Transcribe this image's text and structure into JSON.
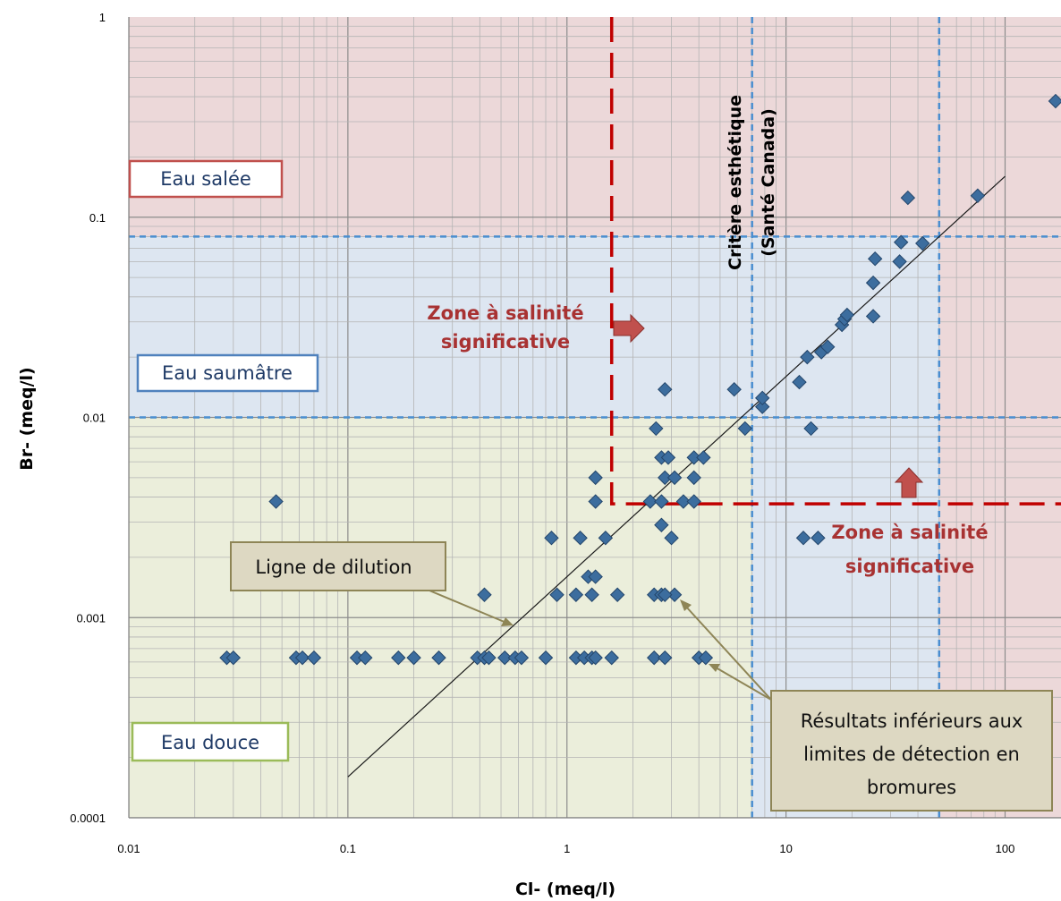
{
  "chart_data": {
    "type": "scatter",
    "xscale": "log",
    "yscale": "log",
    "xlim": [
      0.01,
      180
    ],
    "ylim": [
      0.0001,
      1
    ],
    "xlabel": "Cl- (meq/l)",
    "ylabel": "Br- (meq/l)",
    "xticks": [
      "0.01",
      "0.1",
      "1",
      "10",
      "100"
    ],
    "yticks": [
      "0.0001",
      "0.001",
      "0.01",
      "0.1",
      "1"
    ],
    "grid": true,
    "colors": {
      "fresh": "#ebeedb",
      "brackish": "#dde6f1",
      "salt": "#ecd8d9",
      "point": "#3c6d9e",
      "blue_dash": "#4a8ed0",
      "red_dash": "#c00000"
    },
    "regions": [
      {
        "name": "Eau salée",
        "ymin": 0.08,
        "ymax": 1,
        "color": "salt"
      },
      {
        "name": "Eau saumâtre",
        "ymin": 0.01,
        "ymax": 0.08,
        "color": "brackish"
      },
      {
        "name": "Eau douce",
        "ymin": 0.0001,
        "ymax": 0.01,
        "color": "fresh"
      }
    ],
    "blue_dashed_lines": {
      "horizontal": [
        0.08,
        0.01
      ],
      "vertical": [
        7,
        50
      ]
    },
    "red_dashed_lines": {
      "x": 1.6,
      "y": 0.0037
    },
    "dilution_line": [
      [
        0.1,
        0.00016
      ],
      [
        100,
        0.16
      ]
    ],
    "labels": {
      "salt": "Eau salée",
      "brackish": "Eau saumâtre",
      "fresh": "Eau douce",
      "zone_line1": "Zone à salinité",
      "zone_line2": "significative",
      "criterion_line1": "Critère esthétique",
      "criterion_line2": "(Santé Canada)",
      "dilution": "Ligne de dilution",
      "detection_line1": "Résultats inférieurs aux",
      "detection_line2": "limites de détection en",
      "detection_line3": "bromures"
    },
    "points": [
      [
        0.028,
        0.00063
      ],
      [
        0.03,
        0.00063
      ],
      [
        0.047,
        0.0038
      ],
      [
        0.058,
        0.00063
      ],
      [
        0.062,
        0.00063
      ],
      [
        0.07,
        0.00063
      ],
      [
        0.11,
        0.00063
      ],
      [
        0.12,
        0.00063
      ],
      [
        0.17,
        0.00063
      ],
      [
        0.2,
        0.00063
      ],
      [
        0.26,
        0.00063
      ],
      [
        0.39,
        0.00063
      ],
      [
        0.42,
        0.00063
      ],
      [
        0.44,
        0.00063
      ],
      [
        0.52,
        0.00063
      ],
      [
        0.58,
        0.00063
      ],
      [
        0.62,
        0.00063
      ],
      [
        0.8,
        0.00063
      ],
      [
        1.1,
        0.00063
      ],
      [
        1.2,
        0.00063
      ],
      [
        1.3,
        0.00063
      ],
      [
        1.35,
        0.00063
      ],
      [
        1.6,
        0.00063
      ],
      [
        2.5,
        0.00063
      ],
      [
        2.8,
        0.00063
      ],
      [
        4.0,
        0.00063
      ],
      [
        4.3,
        0.00063
      ],
      [
        0.42,
        0.0013
      ],
      [
        0.9,
        0.0013
      ],
      [
        1.1,
        0.0013
      ],
      [
        1.3,
        0.0013
      ],
      [
        1.7,
        0.0013
      ],
      [
        2.5,
        0.0013
      ],
      [
        2.7,
        0.0013
      ],
      [
        3.1,
        0.0013
      ],
      [
        2.8,
        0.0013
      ],
      [
        1.25,
        0.0016
      ],
      [
        1.35,
        0.0016
      ],
      [
        0.85,
        0.0025
      ],
      [
        1.15,
        0.0025
      ],
      [
        1.5,
        0.0025
      ],
      [
        3.0,
        0.0025
      ],
      [
        12.0,
        0.0025
      ],
      [
        14.0,
        0.0025
      ],
      [
        2.7,
        0.0029
      ],
      [
        1.35,
        0.0038
      ],
      [
        2.4,
        0.0038
      ],
      [
        2.7,
        0.0038
      ],
      [
        3.4,
        0.0038
      ],
      [
        3.8,
        0.0038
      ],
      [
        1.35,
        0.005
      ],
      [
        2.8,
        0.005
      ],
      [
        3.1,
        0.005
      ],
      [
        3.8,
        0.005
      ],
      [
        2.7,
        0.0063
      ],
      [
        2.9,
        0.0063
      ],
      [
        3.8,
        0.0063
      ],
      [
        4.2,
        0.0063
      ],
      [
        2.55,
        0.0088
      ],
      [
        6.5,
        0.0088
      ],
      [
        13.0,
        0.0088
      ],
      [
        7.8,
        0.0113
      ],
      [
        7.8,
        0.0125
      ],
      [
        2.8,
        0.0138
      ],
      [
        5.8,
        0.0138
      ],
      [
        11.5,
        0.015
      ],
      [
        12.5,
        0.02
      ],
      [
        14.5,
        0.0212
      ],
      [
        15.5,
        0.0225
      ],
      [
        18.0,
        0.029
      ],
      [
        18.5,
        0.031
      ],
      [
        19.0,
        0.0325
      ],
      [
        25.0,
        0.032
      ],
      [
        25.0,
        0.047
      ],
      [
        25.5,
        0.062
      ],
      [
        33.0,
        0.06
      ],
      [
        33.5,
        0.075
      ],
      [
        42.0,
        0.074
      ],
      [
        36.0,
        0.125
      ],
      [
        75.0,
        0.128
      ],
      [
        170.0,
        0.38
      ]
    ]
  }
}
